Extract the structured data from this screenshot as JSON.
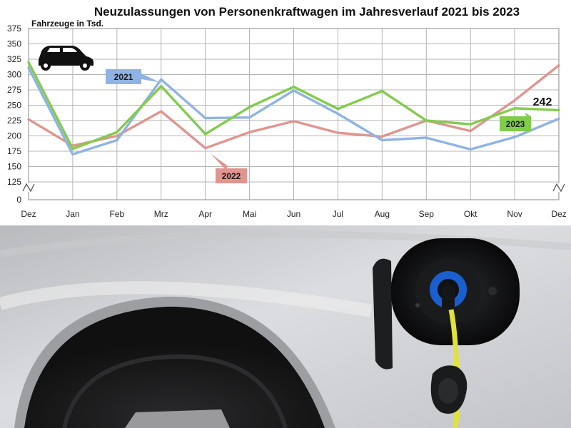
{
  "chart_data": {
    "type": "line",
    "title": "Neuzulassungen von Personenkraftwagen im Jahresverlauf 2021 bis 2023",
    "ylabel": "Fahrzeuge in Tsd.",
    "xlabel": "",
    "categories": [
      "Dez",
      "Jan",
      "Feb",
      "Mrz",
      "Apr",
      "Mai",
      "Jun",
      "Jul",
      "Aug",
      "Sep",
      "Okt",
      "Nov",
      "Dez"
    ],
    "yticks": [
      0,
      125,
      150,
      175,
      200,
      225,
      250,
      275,
      300,
      325,
      350,
      375
    ],
    "ylim": [
      0,
      375
    ],
    "axis_break": "between 0 and 125",
    "grid": true,
    "series": [
      {
        "name": "2021",
        "color": "#8fb4e3",
        "values": [
          311,
          170,
          193,
          292,
          229,
          230,
          274,
          236,
          193,
          197,
          178,
          198,
          228
        ]
      },
      {
        "name": "2022",
        "color": "#e0958f",
        "values": [
          227,
          184,
          200,
          240,
          180,
          206,
          224,
          205,
          199,
          225,
          208,
          258,
          315
        ]
      },
      {
        "name": "2023",
        "color": "#82cc4c",
        "values": [
          320,
          179,
          206,
          281,
          203,
          247,
          280,
          244,
          273,
          225,
          219,
          245,
          242
        ]
      }
    ],
    "annotations": [
      {
        "text": "242",
        "series": "2023",
        "category_index": 12
      }
    ]
  },
  "photo": {
    "subject": "electric car charging port with plugged-in cable",
    "colors": {
      "car_body": "#cfd0d2",
      "cable": "#e2e23a",
      "plug_ring": "#1a5fd0",
      "port": "#121314",
      "tire": "#1c1c1e"
    }
  }
}
